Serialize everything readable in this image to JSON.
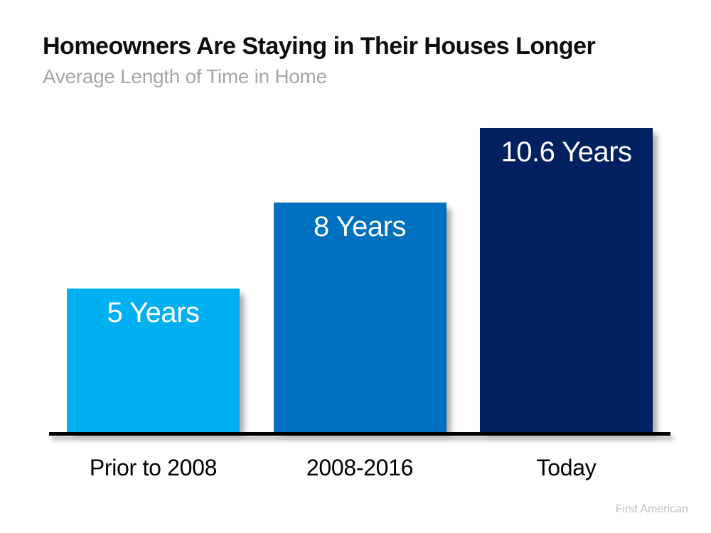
{
  "page": {
    "title": "Homeowners Are Staying in Their Houses Longer",
    "subtitle": "Average Length of Time in Home",
    "source": "First American"
  },
  "colors": {
    "title": "#0d0d0d",
    "subtitle": "#a6a6a6",
    "axis": "#000000",
    "bar_label_text": "#ffffff",
    "source": "#bfbfbf"
  },
  "chart_data": {
    "type": "bar",
    "title": "Homeowners Are Staying in Their Houses Longer",
    "subtitle": "Average Length of Time in Home",
    "categories": [
      "Prior to 2008",
      "2008-2016",
      "Today"
    ],
    "values": [
      5,
      8,
      10.6
    ],
    "unit": "Years",
    "bar_labels": [
      "5 Years",
      "8 Years",
      "10.6 Years"
    ],
    "bar_colors": [
      "#00b0f0",
      "#0070c0",
      "#002060"
    ],
    "ylim": [
      0,
      10.6
    ],
    "xlabel": "",
    "ylabel": "",
    "grid": false,
    "legend": false,
    "value_label_position": "inside-top",
    "source": "First American"
  }
}
